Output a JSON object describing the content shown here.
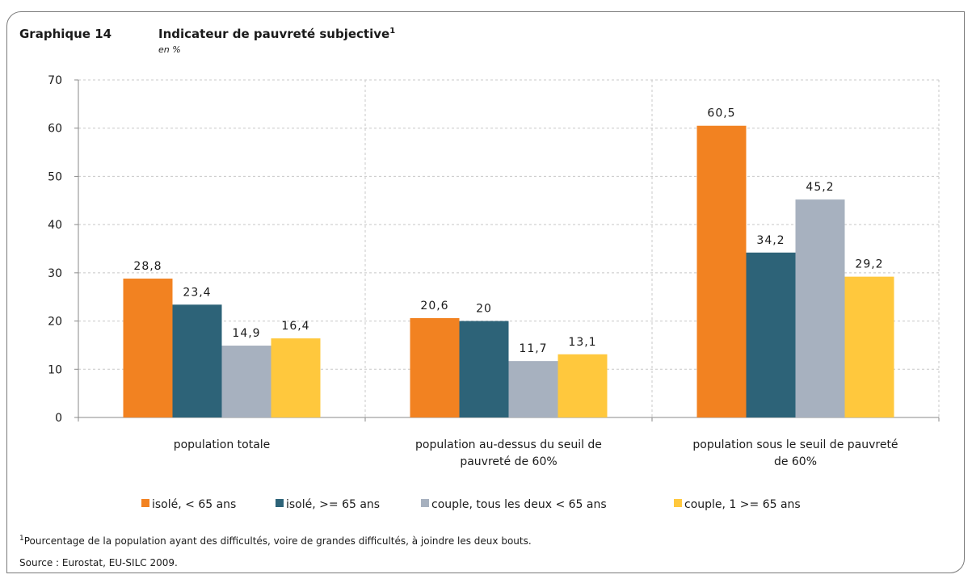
{
  "header": {
    "number": "Graphique 14",
    "title": "Indicateur de pauvreté subjective",
    "title_note_ref": "1",
    "unit": "en %"
  },
  "chart_data": {
    "type": "bar",
    "categories": [
      [
        "population totale"
      ],
      [
        "population au-dessus du seuil de",
        "pauvreté de 60%"
      ],
      [
        "population sous le seuil de pauvreté",
        "de 60%"
      ]
    ],
    "series": [
      {
        "name": "isolé, < 65 ans",
        "color": "#f28221",
        "values": [
          28.8,
          20.6,
          60.5
        ]
      },
      {
        "name": "isolé, >= 65 ans",
        "color": "#2d6378",
        "values": [
          23.4,
          20,
          34.2
        ]
      },
      {
        "name": "couple, tous les deux < 65 ans",
        "color": "#a7b1bf",
        "values": [
          14.9,
          11.7,
          45.2
        ]
      },
      {
        "name": "couple, 1 >= 65 ans",
        "color": "#ffc83d",
        "values": [
          16.4,
          13.1,
          29.2
        ]
      }
    ],
    "data_labels": [
      [
        "28,8",
        "20,6",
        "60,5"
      ],
      [
        "23,4",
        "20",
        "34,2"
      ],
      [
        "14,9",
        "11,7",
        "45,2"
      ],
      [
        "16,4",
        "13,1",
        "29,2"
      ]
    ],
    "ylim": [
      0,
      70
    ],
    "yticks": [
      0,
      10,
      20,
      30,
      40,
      50,
      60,
      70
    ],
    "grid": true,
    "legend_position": "bottom"
  },
  "footer": {
    "footnote_ref": "1",
    "footnote": "Pourcentage de la population ayant des difficultés, voire de grandes difficultés, à joindre les deux bouts.",
    "source": "Source : Eurostat, EU-SILC 2009."
  }
}
